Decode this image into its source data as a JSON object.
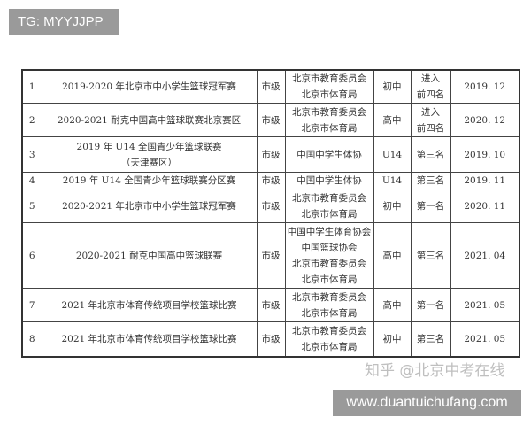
{
  "tag_label": "TG: MYYJJPP",
  "site_label": "www.duantuichufang.com",
  "watermark": "知乎 @北京中考在线",
  "rows": [
    {
      "no": "1",
      "name": "2019-2020 年北京市中小学生篮球冠军赛",
      "level": "市级",
      "org": "北京市教育委员会\n北京市体育局",
      "group": "初中",
      "result": "进入\n前四名",
      "date": "2019. 12"
    },
    {
      "no": "2",
      "name": "2020-2021 耐克中国高中篮球联赛北京赛区",
      "level": "市级",
      "org": "北京市教育委员会\n北京市体育局",
      "group": "高中",
      "result": "进入\n前四名",
      "date": "2020. 12"
    },
    {
      "no": "3",
      "name": "2019 年 U14 全国青少年篮球联赛\n（天津赛区）",
      "level": "市级",
      "org": "中国中学生体协",
      "group": "U14",
      "result": "第三名",
      "date": "2019. 10"
    },
    {
      "no": "4",
      "name": "2019 年 U14 全国青少年篮球联赛分区赛",
      "level": "市级",
      "org": "中国中学生体协",
      "group": "U14",
      "result": "第三名",
      "date": "2019. 11"
    },
    {
      "no": "5",
      "name": "2020-2021 年北京市中小学生篮球冠军赛",
      "level": "市级",
      "org": "北京市教育委员会\n北京市体育局",
      "group": "初中",
      "result": "第一名",
      "date": "2020. 11"
    },
    {
      "no": "6",
      "name": "2020-2021 耐克中国高中篮球联赛",
      "level": "市级",
      "org": "中国中学生体育协会\n中国篮球协会\n北京市教育委员会\n北京市体育局",
      "group": "高中",
      "result": "第三名",
      "date": "2021. 04"
    },
    {
      "no": "7",
      "name": "2021 年北京市体育传统项目学校篮球比赛",
      "level": "市级",
      "org": "北京市教育委员会\n北京市体育局",
      "group": "高中",
      "result": "第一名",
      "date": "2021. 05"
    },
    {
      "no": "8",
      "name": "2021 年北京市体育传统项目学校篮球比赛",
      "level": "市级",
      "org": "北京市教育委员会\n北京市体育局",
      "group": "初中",
      "result": "第三名",
      "date": "2021. 05"
    }
  ]
}
